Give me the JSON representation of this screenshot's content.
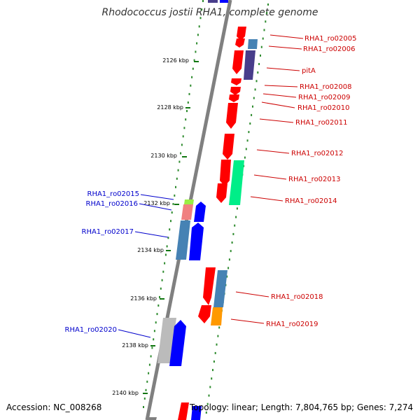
{
  "header": {
    "title": "Rhodococcus jostii RHA1, complete genome"
  },
  "footer": {
    "accession": "Accession: NC_008268",
    "summary": "Topology: linear; Length: 7,804,765 bp; Genes: 7,274"
  },
  "colors": {
    "backbone": "#808080",
    "tick_dots": "#2e8b2e",
    "right_label": "#cc0000",
    "left_label": "#0000cc",
    "gene_red": "#ff0000",
    "gene_steelblue": "#4682b4",
    "gene_slateblue": "#483d8b",
    "gene_green": "#00ee88",
    "gene_blue": "#0000ff",
    "gene_pink": "#f08080",
    "gene_lime": "#99ee44",
    "gene_gray": "#bbbbbb",
    "gene_orange": "#ff9900"
  },
  "scale_labels": [
    "2126 kbp",
    "2128 kbp",
    "2130 kbp",
    "2132 kbp",
    "2134 kbp",
    "2136 kbp",
    "2138 kbp",
    "2140 kbp"
  ],
  "right_genes": [
    "RHA1_ro02005",
    "RHA1_ro02006",
    "pitA",
    "RHA1_ro02008",
    "RHA1_ro02009",
    "RHA1_ro02010",
    "RHA1_ro02011",
    "RHA1_ro02012",
    "RHA1_ro02013",
    "RHA1_ro02014",
    "RHA1_ro02018",
    "RHA1_ro02019"
  ],
  "left_genes": [
    "RHA1_ro02015",
    "RHA1_ro02016",
    "RHA1_ro02017",
    "RHA1_ro02020"
  ]
}
